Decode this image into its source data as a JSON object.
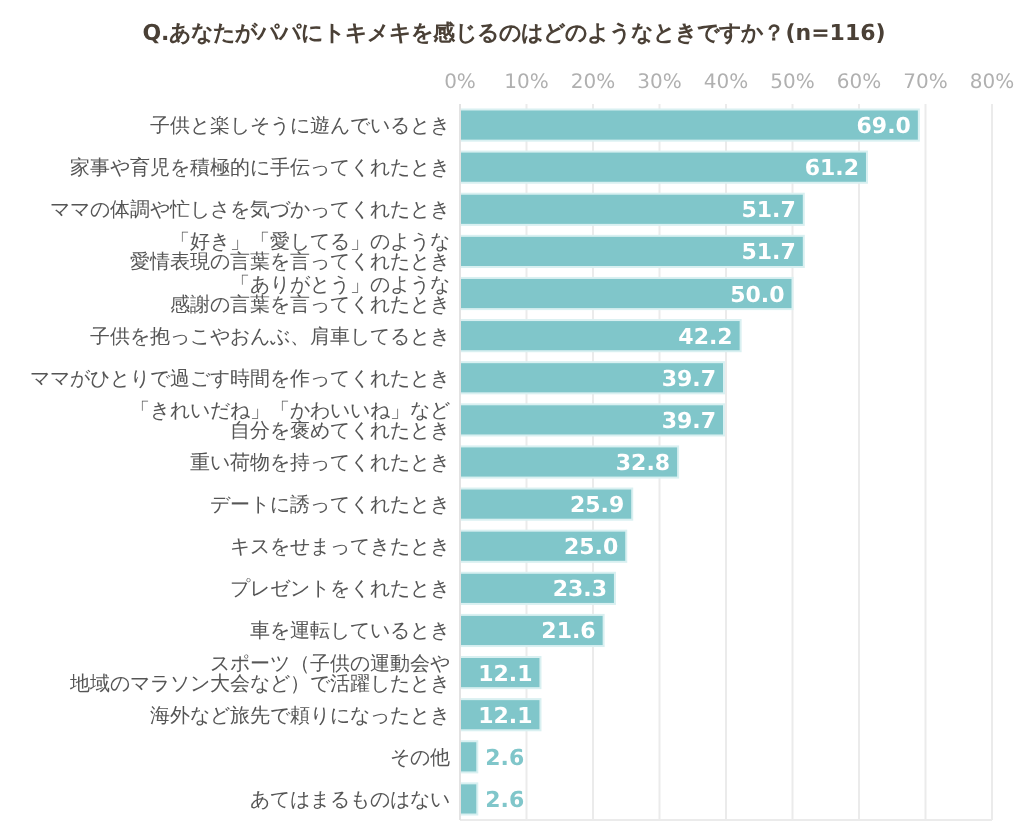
{
  "chart_data": {
    "type": "bar",
    "orientation": "horizontal",
    "title": "Q.あなたがパパにトキメキを感じるのはどのようなときですか？(n=116)",
    "categories": [
      "子供と楽しそうに遊んでいるとき",
      "家事や育児を積極的に手伝ってくれたとき",
      "ママの体調や忙しさを気づかってくれたとき",
      "「好き」「愛してる」のような愛情表現の言葉を言ってくれたとき",
      "「ありがとう」のような感謝の言葉を言ってくれたとき",
      "子供を抱っこやおんぶ、肩車してるとき",
      "ママがひとりで過ごす時間を作ってくれたとき",
      "「きれいだね」「かわいいね」など自分を褒めてくれたとき",
      "重い荷物を持ってくれたとき",
      "デートに誘ってくれたとき",
      "キスをせまってきたとき",
      "プレゼントをくれたとき",
      "車を運転しているとき",
      "スポーツ（子供の運動会や地域のマラソン大会など）で活躍したとき",
      "海外など旅先で頼りになったとき",
      "その他",
      "あてはまるものはない"
    ],
    "values": [
      69.0,
      61.2,
      51.7,
      51.7,
      50.0,
      42.2,
      39.7,
      39.7,
      32.8,
      25.9,
      25.0,
      23.3,
      21.6,
      12.1,
      12.1,
      2.6,
      2.6
    ],
    "value_labels": [
      "69.0",
      "61.2",
      "51.7",
      "51.7",
      "50.0",
      "42.2",
      "39.7",
      "39.7",
      "32.8",
      "25.9",
      "25.0",
      "23.3",
      "21.6",
      "12.1",
      "12.1",
      "2.6",
      "2.6"
    ],
    "color": "#80c6ca",
    "xlim": [
      0,
      80
    ],
    "xticks": [
      {
        "value": 0,
        "label": "0%"
      },
      {
        "value": 10,
        "label": "10%"
      },
      {
        "value": 20,
        "label": "20%"
      },
      {
        "value": 30,
        "label": "30%"
      },
      {
        "value": 40,
        "label": "40%"
      },
      {
        "value": 50,
        "label": "50%"
      },
      {
        "value": 60,
        "label": "60%"
      },
      {
        "value": 70,
        "label": "70%"
      },
      {
        "value": 80,
        "label": "80%"
      }
    ],
    "grid": "x"
  }
}
